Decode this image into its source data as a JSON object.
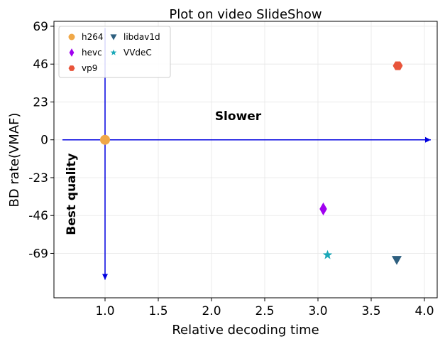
{
  "chart_data": {
    "type": "scatter",
    "title": "Plot on video SlideShow",
    "xlabel": "Relative decoding time",
    "ylabel": "BD rate(VMAF)",
    "xlim": [
      0.52,
      4.12
    ],
    "ylim": [
      -96,
      72
    ],
    "grid": true,
    "legend_position": "top-left",
    "x_ticks": [
      1.0,
      1.5,
      2.0,
      2.5,
      3.0,
      3.5,
      4.0
    ],
    "x_tick_labels": [
      "1.0",
      "1.5",
      "2.0",
      "2.5",
      "3.0",
      "3.5",
      "4.0"
    ],
    "y_ticks": [
      69,
      46,
      23,
      0,
      -23,
      -46,
      -69
    ],
    "y_tick_labels": [
      "69",
      "46",
      "23",
      "0",
      "-23",
      "-46",
      "-69"
    ],
    "series": [
      {
        "name": "h264",
        "marker": "circle",
        "color": "#f0a848",
        "points": [
          {
            "x": 1.0,
            "y": 0
          }
        ]
      },
      {
        "name": "hevc",
        "marker": "diamond",
        "color": "#a000f0",
        "points": [
          {
            "x": 3.05,
            "y": -42
          }
        ]
      },
      {
        "name": "vp9",
        "marker": "hexagon",
        "color": "#e8543a",
        "points": [
          {
            "x": 3.75,
            "y": 45
          }
        ]
      },
      {
        "name": "libdav1d",
        "marker": "triangle-down",
        "color": "#2e5f7f",
        "points": [
          {
            "x": 3.74,
            "y": -73
          }
        ]
      },
      {
        "name": "VVdeC",
        "marker": "star",
        "color": "#1aa8b8",
        "points": [
          {
            "x": 3.09,
            "y": -70
          }
        ]
      }
    ],
    "annotations": [
      {
        "text": "Slower",
        "x": 2.25,
        "y": 12
      },
      {
        "text": "Best quality",
        "x": 0.72,
        "y": -33,
        "rotation": -90
      }
    ],
    "arrows": [
      {
        "from": [
          0.6,
          0
        ],
        "to": [
          4.06,
          0
        ],
        "color": "#0000e0"
      },
      {
        "from": [
          1.0,
          68
        ],
        "to": [
          1.0,
          -85
        ],
        "color": "#0000e0"
      }
    ]
  }
}
